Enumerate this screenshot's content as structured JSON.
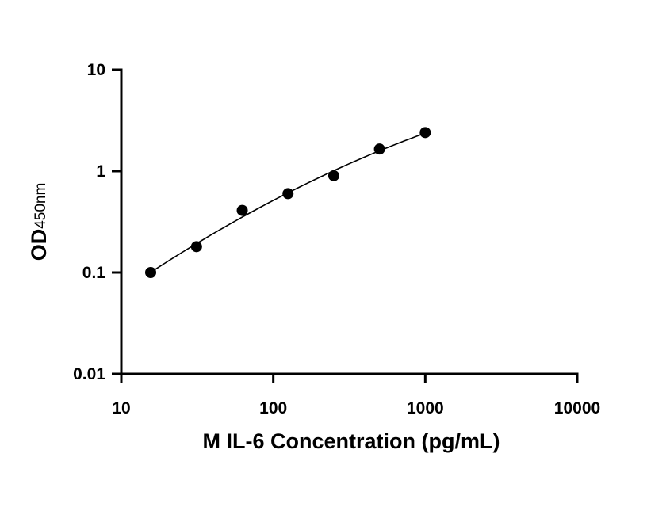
{
  "chart_data": {
    "type": "scatter",
    "title": "",
    "xlabel": "M IL-6 Concentration (pg/mL)",
    "ylabel_main": "OD",
    "ylabel_sub": "450nm",
    "xscale": "log",
    "yscale": "log",
    "xlim": [
      10,
      10000
    ],
    "ylim": [
      0.01,
      10
    ],
    "x_ticks": [
      10,
      100,
      1000,
      10000
    ],
    "x_tick_labels": [
      "10",
      "100",
      "1000",
      "10000"
    ],
    "y_ticks": [
      0.01,
      0.1,
      1,
      10
    ],
    "y_tick_labels": [
      "0.01",
      "0.1",
      "1",
      "10"
    ],
    "grid": false,
    "legend": "none",
    "series": [
      {
        "x": [
          15.6,
          31.25,
          62.5,
          125,
          250,
          500,
          1000
        ],
        "y": [
          0.1,
          0.18,
          0.41,
          0.6,
          0.9,
          1.65,
          2.4
        ],
        "marker": "circle",
        "fit_line": true,
        "color": "#000000"
      }
    ]
  }
}
